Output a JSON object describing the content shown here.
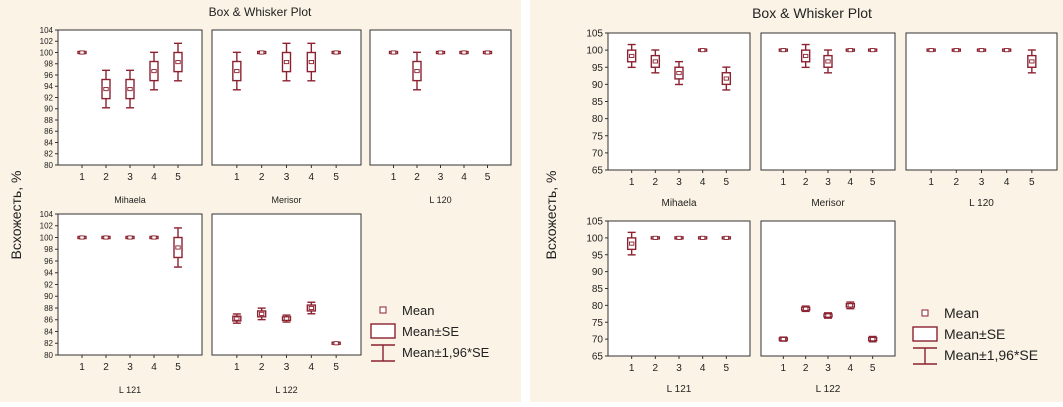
{
  "colors": {
    "background": "#fbf3e6",
    "panel": "#ffffff",
    "axis": "#333333",
    "box": "#8b2230"
  },
  "chart_data": [
    {
      "type": "box",
      "title": "Box & Whisker Plot",
      "ylabel": "Всхожесть, %",
      "xlabel": "",
      "ylim": [
        80,
        104
      ],
      "yticks": [
        80,
        82,
        84,
        86,
        88,
        90,
        92,
        94,
        96,
        98,
        100,
        102,
        104
      ],
      "categories": [
        "1",
        "2",
        "3",
        "4",
        "5"
      ],
      "legend": {
        "placement": "bottom-right",
        "entries": [
          "Mean",
          "Mean±SE",
          "Mean±1,96*SE"
        ]
      },
      "panels": [
        {
          "name": "Mihaela",
          "mean": [
            100,
            93.5,
            93.5,
            96.7,
            98.3
          ],
          "se": [
            0,
            1.7,
            1.7,
            1.7,
            1.7
          ]
        },
        {
          "name": "Merisor",
          "mean": [
            96.7,
            100,
            98.3,
            98.3,
            100
          ],
          "se": [
            1.7,
            0,
            1.7,
            1.7,
            0
          ]
        },
        {
          "name": "L 120",
          "mean": [
            100,
            96.7,
            100,
            100,
            100
          ],
          "se": [
            0,
            1.7,
            0,
            0,
            0
          ]
        },
        {
          "name": "L 121",
          "mean": [
            100,
            100,
            100,
            100,
            98.3
          ],
          "se": [
            0,
            0,
            0,
            0,
            1.7
          ]
        },
        {
          "name": "L 122",
          "mean": [
            86.2,
            87,
            86.2,
            88,
            82
          ],
          "se": [
            0.4,
            0.5,
            0.3,
            0.5,
            0
          ]
        }
      ]
    },
    {
      "type": "box",
      "title": "Box & Whisker Plot",
      "ylabel": "Всхожесть, %",
      "xlabel": "",
      "ylim": [
        65,
        105
      ],
      "yticks": [
        65,
        70,
        75,
        80,
        85,
        90,
        95,
        100,
        105
      ],
      "categories": [
        "1",
        "2",
        "3",
        "4",
        "5"
      ],
      "legend": {
        "placement": "bottom-right",
        "entries": [
          "Mean",
          "Mean±SE",
          "Mean±1,96*SE"
        ]
      },
      "panels": [
        {
          "name": "Mihaela",
          "mean": [
            98.3,
            96.7,
            93.3,
            100,
            91.7
          ],
          "se": [
            1.7,
            1.7,
            1.7,
            0,
            1.7
          ]
        },
        {
          "name": "Merisor",
          "mean": [
            100,
            98.3,
            96.7,
            100,
            100
          ],
          "se": [
            0,
            1.7,
            1.7,
            0,
            0
          ]
        },
        {
          "name": "L 120",
          "mean": [
            100,
            100,
            100,
            100,
            96.7
          ],
          "se": [
            0,
            0,
            0,
            0,
            1.7
          ]
        },
        {
          "name": "L 121",
          "mean": [
            98.3,
            100,
            100,
            100,
            100
          ],
          "se": [
            1.7,
            0,
            0,
            0,
            0
          ]
        },
        {
          "name": "L 122",
          "mean": [
            70,
            79,
            77,
            80,
            70
          ],
          "se": [
            0.3,
            0.4,
            0.4,
            0.5,
            0.4
          ]
        }
      ]
    }
  ]
}
